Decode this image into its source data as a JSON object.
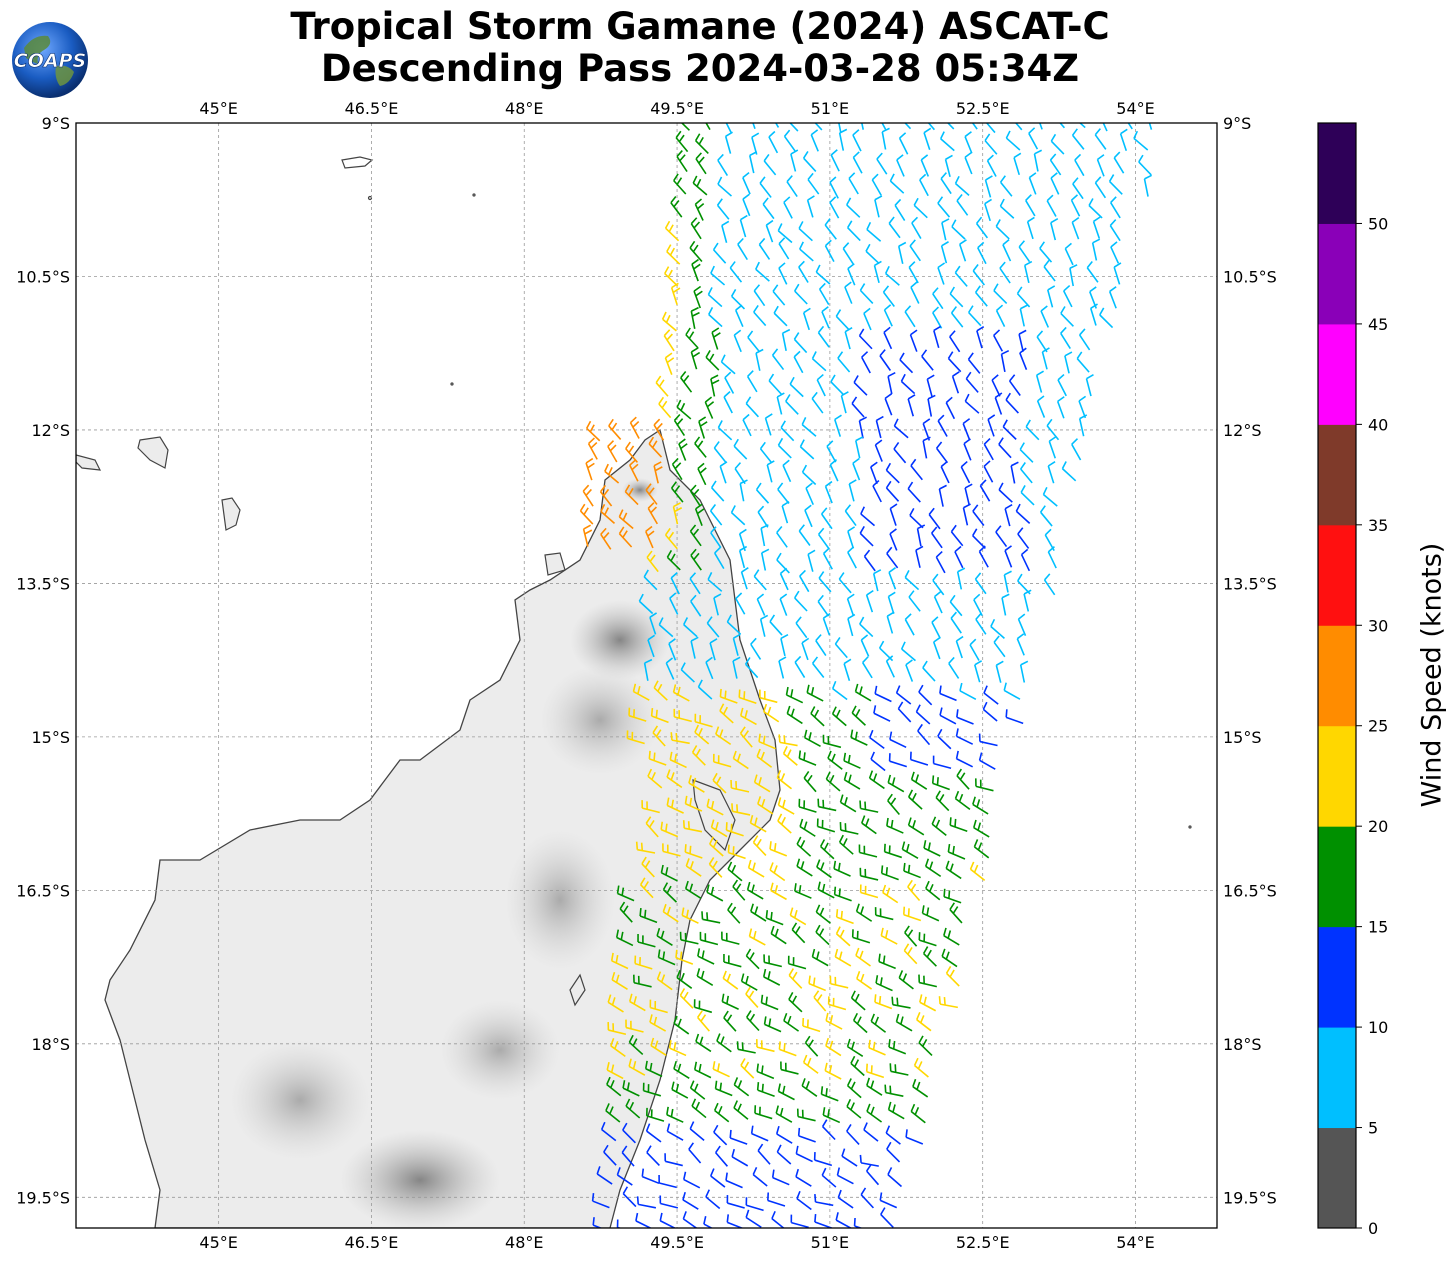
{
  "title": {
    "line1": "Tropical Storm Gamane (2024) ASCAT-C",
    "line2": "Descending Pass 2024-03-28 05:34Z"
  },
  "logo": {
    "text": "COAPS",
    "icon": "globe-icon"
  },
  "map": {
    "lon_range": [
      43.6,
      54.8
    ],
    "lat_range": [
      -19.8,
      -9.0
    ],
    "lon_ticks": [
      {
        "value": 45.0,
        "label": "45°E"
      },
      {
        "value": 46.5,
        "label": "46.5°E"
      },
      {
        "value": 48.0,
        "label": "48°E"
      },
      {
        "value": 49.5,
        "label": "49.5°E"
      },
      {
        "value": 51.0,
        "label": "51°E"
      },
      {
        "value": 52.5,
        "label": "52.5°E"
      },
      {
        "value": 54.0,
        "label": "54°E"
      }
    ],
    "lat_ticks": [
      {
        "value": -9.0,
        "label": "9°S"
      },
      {
        "value": -10.5,
        "label": "10.5°S"
      },
      {
        "value": -12.0,
        "label": "12°S"
      },
      {
        "value": -13.5,
        "label": "13.5°S"
      },
      {
        "value": -15.0,
        "label": "15°S"
      },
      {
        "value": -16.5,
        "label": "16.5°S"
      },
      {
        "value": -18.0,
        "label": "18°S"
      },
      {
        "value": -19.5,
        "label": "19.5°S"
      }
    ],
    "grid": true,
    "coastline_color": "#444444",
    "terrain_color": "#c8c8c8"
  },
  "colorbar": {
    "label": "Wind Speed (knots)",
    "ticks": [
      "0",
      "5",
      "10",
      "15",
      "20",
      "25",
      "30",
      "35",
      "40",
      "45",
      "50"
    ],
    "colors": [
      "#555555",
      "#00bfff",
      "#0033ff",
      "#009000",
      "#ffd700",
      "#ff8c00",
      "#ff1010",
      "#7f3a2a",
      "#ff00ff",
      "#8a00b8",
      "#2e0058"
    ]
  }
}
